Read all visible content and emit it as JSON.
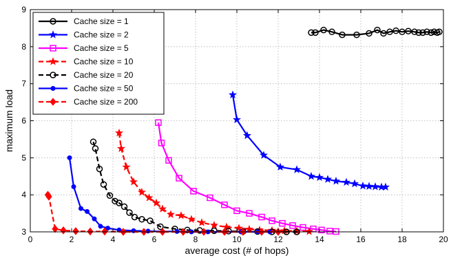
{
  "chart_data": {
    "type": "line",
    "xlabel": "average cost (# of hops)",
    "ylabel": "maximum load",
    "xlim": [
      0,
      20
    ],
    "ylim": [
      3,
      9
    ],
    "xticks": [
      0,
      2,
      4,
      6,
      8,
      10,
      12,
      14,
      16,
      18,
      20
    ],
    "yticks": [
      3,
      4,
      5,
      6,
      7,
      8,
      9
    ],
    "grid": true,
    "legend_position": "top-left",
    "series": [
      {
        "name": "Cache size = 1",
        "color": "#000000",
        "dash": "solid",
        "marker": "circle",
        "points": [
          [
            13.6,
            8.38
          ],
          [
            13.8,
            8.38
          ],
          [
            14.2,
            8.45
          ],
          [
            14.6,
            8.4
          ],
          [
            15.1,
            8.32
          ],
          [
            15.8,
            8.32
          ],
          [
            16.4,
            8.36
          ],
          [
            16.8,
            8.45
          ],
          [
            17.1,
            8.36
          ],
          [
            17.4,
            8.4
          ],
          [
            17.7,
            8.43
          ],
          [
            18.0,
            8.4
          ],
          [
            18.3,
            8.42
          ],
          [
            18.6,
            8.4
          ],
          [
            18.8,
            8.38
          ],
          [
            19.0,
            8.38
          ],
          [
            19.2,
            8.4
          ],
          [
            19.4,
            8.38
          ],
          [
            19.55,
            8.4
          ],
          [
            19.7,
            8.38
          ],
          [
            19.8,
            8.4
          ]
        ]
      },
      {
        "name": "Cache size = 2",
        "color": "#0000ff",
        "dash": "solid",
        "marker": "star",
        "points": [
          [
            9.8,
            6.7
          ],
          [
            10.0,
            6.03
          ],
          [
            10.5,
            5.6
          ],
          [
            11.3,
            5.07
          ],
          [
            12.1,
            4.75
          ],
          [
            12.9,
            4.68
          ],
          [
            13.6,
            4.5
          ],
          [
            14.0,
            4.47
          ],
          [
            14.4,
            4.42
          ],
          [
            14.8,
            4.37
          ],
          [
            15.3,
            4.34
          ],
          [
            15.7,
            4.3
          ],
          [
            16.1,
            4.24
          ],
          [
            16.4,
            4.23
          ],
          [
            16.7,
            4.22
          ],
          [
            17.0,
            4.21
          ],
          [
            17.2,
            4.21
          ]
        ]
      },
      {
        "name": "Cache size = 5",
        "color": "#ff00ff",
        "dash": "solid",
        "marker": "square",
        "points": [
          [
            6.2,
            5.95
          ],
          [
            6.35,
            5.4
          ],
          [
            6.7,
            4.93
          ],
          [
            7.2,
            4.45
          ],
          [
            7.9,
            4.1
          ],
          [
            8.7,
            3.92
          ],
          [
            9.4,
            3.73
          ],
          [
            10.0,
            3.57
          ],
          [
            10.6,
            3.5
          ],
          [
            11.2,
            3.4
          ],
          [
            11.7,
            3.3
          ],
          [
            12.2,
            3.23
          ],
          [
            12.7,
            3.17
          ],
          [
            13.2,
            3.12
          ],
          [
            13.7,
            3.08
          ],
          [
            14.1,
            3.05
          ],
          [
            14.5,
            3.02
          ],
          [
            14.8,
            3.01
          ]
        ]
      },
      {
        "name": "Cache size = 10",
        "color": "#ff0000",
        "dash": "dashed",
        "marker": "star",
        "points": [
          [
            4.3,
            5.67
          ],
          [
            4.4,
            5.25
          ],
          [
            4.65,
            4.75
          ],
          [
            5.0,
            4.35
          ],
          [
            5.4,
            4.07
          ],
          [
            5.75,
            3.92
          ],
          [
            6.1,
            3.78
          ],
          [
            6.4,
            3.62
          ],
          [
            6.8,
            3.47
          ],
          [
            7.3,
            3.44
          ],
          [
            7.8,
            3.34
          ],
          [
            8.3,
            3.25
          ],
          [
            8.9,
            3.18
          ],
          [
            9.5,
            3.13
          ],
          [
            10.1,
            3.1
          ],
          [
            10.6,
            3.07
          ],
          [
            11.1,
            3.05
          ],
          [
            11.7,
            3.04
          ],
          [
            12.3,
            3.03
          ],
          [
            12.9,
            3.02
          ],
          [
            13.5,
            3.01
          ]
        ]
      },
      {
        "name": "Cache size = 20",
        "color": "#000000",
        "dash": "dashed",
        "marker": "circle",
        "points": [
          [
            3.05,
            5.43
          ],
          [
            3.15,
            5.25
          ],
          [
            3.35,
            4.7
          ],
          [
            3.55,
            4.28
          ],
          [
            3.85,
            3.98
          ],
          [
            4.1,
            3.83
          ],
          [
            4.3,
            3.78
          ],
          [
            4.55,
            3.68
          ],
          [
            4.8,
            3.52
          ],
          [
            5.05,
            3.4
          ],
          [
            5.4,
            3.34
          ],
          [
            5.8,
            3.3
          ],
          [
            6.3,
            3.14
          ],
          [
            7.0,
            3.08
          ],
          [
            7.6,
            3.05
          ],
          [
            8.2,
            3.04
          ],
          [
            8.9,
            3.03
          ],
          [
            9.6,
            3.02
          ],
          [
            10.3,
            3.01
          ],
          [
            11.0,
            3.01
          ],
          [
            11.7,
            3.0
          ],
          [
            12.4,
            3.0
          ],
          [
            12.9,
            3.0
          ]
        ]
      },
      {
        "name": "Cache size = 50",
        "color": "#0000ff",
        "dash": "solid",
        "marker": "dot",
        "points": [
          [
            1.9,
            5.0
          ],
          [
            2.1,
            4.22
          ],
          [
            2.45,
            3.63
          ],
          [
            2.75,
            3.55
          ],
          [
            3.1,
            3.35
          ],
          [
            3.4,
            3.15
          ],
          [
            3.75,
            3.1
          ],
          [
            4.3,
            3.05
          ],
          [
            5.0,
            3.03
          ],
          [
            5.7,
            3.02
          ],
          [
            6.4,
            3.01
          ],
          [
            7.1,
            3.01
          ],
          [
            7.8,
            3.0
          ],
          [
            8.6,
            3.0
          ],
          [
            9.4,
            3.0
          ],
          [
            10.2,
            3.0
          ],
          [
            11.0,
            3.0
          ],
          [
            11.6,
            3.0
          ]
        ]
      },
      {
        "name": "Cache size = 200",
        "color": "#ff0000",
        "dash": "dashed",
        "marker": "diamond",
        "points": [
          [
            0.85,
            4.0
          ],
          [
            0.9,
            3.95
          ],
          [
            1.2,
            3.08
          ],
          [
            1.6,
            3.04
          ],
          [
            2.2,
            3.02
          ],
          [
            2.9,
            3.01
          ],
          [
            3.6,
            3.01
          ],
          [
            4.5,
            3.0
          ],
          [
            5.5,
            3.0
          ],
          [
            6.4,
            3.0
          ],
          [
            7.4,
            3.0
          ],
          [
            8.4,
            3.0
          ],
          [
            9.4,
            3.0
          ],
          [
            10.3,
            3.0
          ],
          [
            11.2,
            3.0
          ],
          [
            12.0,
            3.0
          ]
        ]
      }
    ]
  }
}
